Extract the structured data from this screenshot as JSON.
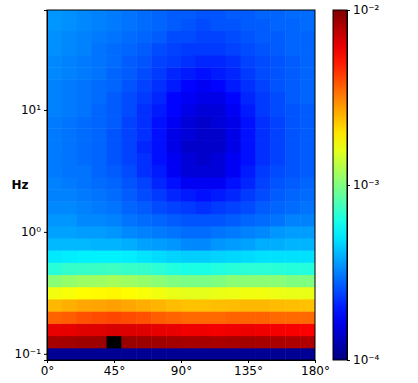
{
  "chart_data": {
    "type": "heatmap",
    "y_label": "Hz",
    "log": "y",
    "xlim": [
      0,
      180
    ],
    "xticks": [
      {
        "value": 0,
        "label": "0°"
      },
      {
        "value": 45,
        "label": "45°"
      },
      {
        "value": 90,
        "label": "90°"
      },
      {
        "value": 135,
        "label": "135°"
      },
      {
        "value": 180,
        "label": "180°"
      }
    ],
    "ylim": [
      0.089,
      66
    ],
    "yticks": [
      {
        "value": 0.1,
        "label": "10⁻¹"
      },
      {
        "value": 1,
        "label": "10⁰"
      },
      {
        "value": 10,
        "label": "10¹"
      }
    ],
    "x_bins": [
      0,
      10,
      20,
      30,
      40,
      50,
      60,
      70,
      80,
      90,
      100,
      110,
      120,
      130,
      140,
      150,
      160,
      170,
      180
    ],
    "y_bins": [
      0.0891,
      0.112,
      0.141,
      0.178,
      0.224,
      0.282,
      0.355,
      0.447,
      0.562,
      0.708,
      0.891,
      1.12,
      1.41,
      1.78,
      2.24,
      2.82,
      3.55,
      4.47,
      5.62,
      7.08,
      8.91,
      11.2,
      14.1,
      17.8,
      22.4,
      28.2,
      35.5,
      44.7,
      56.2,
      70.8
    ],
    "values": [
      [
        0.00011,
        0.00011,
        0.00011,
        0.00011,
        0.00011,
        0.00011,
        0.00011,
        0.00011,
        0.00011,
        0.00011,
        0.00011,
        0.00011,
        0.00011,
        0.00011,
        0.00011,
        0.00011,
        0.00011,
        0.00011
      ],
      [
        0.0084,
        0.0085,
        0.0087,
        0.0088,
        0.014,
        0.0089,
        0.0088,
        0.0087,
        0.0085,
        0.0084,
        0.0084,
        0.0082,
        0.0084,
        0.0085,
        0.0084,
        0.0082,
        0.0081,
        0.0081
      ],
      [
        0.0062,
        0.0063,
        0.0065,
        0.0065,
        0.0067,
        0.0066,
        0.0065,
        0.0063,
        0.0062,
        0.006,
        0.006,
        0.0059,
        0.006,
        0.0061,
        0.006,
        0.0059,
        0.0058,
        0.0057
      ],
      [
        0.0036,
        0.0037,
        0.0039,
        0.004,
        0.0041,
        0.004,
        0.0039,
        0.0037,
        0.0036,
        0.0035,
        0.0035,
        0.0035,
        0.0036,
        0.0036,
        0.0036,
        0.0035,
        0.0035,
        0.0035
      ],
      [
        0.00245,
        0.00255,
        0.00265,
        0.00268,
        0.00274,
        0.00265,
        0.00257,
        0.00249,
        0.00241,
        0.00235,
        0.00235,
        0.00237,
        0.00241,
        0.00245,
        0.00245,
        0.00241,
        0.00237,
        0.00235
      ],
      [
        0.00167,
        0.00173,
        0.00179,
        0.00182,
        0.00184,
        0.00179,
        0.00173,
        0.00167,
        0.00161,
        0.00158,
        0.00158,
        0.00161,
        0.00164,
        0.00167,
        0.00167,
        0.00164,
        0.00161,
        0.00161
      ],
      [
        0.00105,
        0.0011,
        0.00114,
        0.00114,
        0.00118,
        0.00114,
        0.0011,
        0.00105,
        0.001,
        0.00097,
        0.00097,
        0.001,
        0.00105,
        0.00105,
        0.00105,
        0.00105,
        0.001,
        0.001
      ],
      [
        0.00067,
        0.00071,
        0.00072,
        0.00073,
        0.00074,
        0.00072,
        0.00071,
        0.00068,
        0.00065,
        0.00063,
        0.00063,
        0.00065,
        0.00067,
        0.00068,
        0.00068,
        0.00067,
        0.00066,
        0.00066
      ],
      [
        0.00051,
        0.00052,
        0.00053,
        0.00053,
        0.00053,
        0.00052,
        0.0005,
        0.00048,
        0.00046,
        0.00045,
        0.00045,
        0.00046,
        0.00047,
        0.00048,
        0.00049,
        0.00049,
        0.00049,
        0.00049
      ],
      [
        0.00041,
        0.00041,
        0.00041,
        0.0004,
        0.0004,
        0.00039,
        0.00037,
        0.00036,
        0.00035,
        0.00033,
        0.00033,
        0.00035,
        0.00036,
        0.00037,
        0.00039,
        0.00039,
        0.0004,
        0.0004
      ],
      [
        0.00037,
        0.00037,
        0.00036,
        0.00036,
        0.00035,
        0.00033,
        0.00032,
        0.00031,
        0.0003,
        0.00029,
        0.00029,
        0.0003,
        0.00031,
        0.00032,
        0.00033,
        0.00035,
        0.00036,
        0.00036
      ],
      [
        0.00035,
        0.00035,
        0.00033,
        0.00033,
        0.00032,
        0.0003,
        0.00029,
        0.00028,
        0.00027,
        0.00026,
        0.00026,
        0.00026,
        0.00027,
        0.00028,
        0.00029,
        0.0003,
        0.00032,
        0.00032
      ],
      [
        0.00033,
        0.00033,
        0.00032,
        0.00031,
        0.0003,
        0.00028,
        0.00027,
        0.00025,
        0.00024,
        0.00023,
        0.00022,
        0.00023,
        0.00024,
        0.00025,
        0.00027,
        0.00028,
        0.00029,
        0.0003
      ],
      [
        0.00032,
        0.00032,
        0.00031,
        0.0003,
        0.00029,
        0.00027,
        0.00025,
        0.00023,
        0.00021,
        0.0002,
        0.00019,
        0.0002,
        0.00021,
        0.00023,
        0.00025,
        0.00027,
        0.00028,
        0.00029
      ],
      [
        0.00032,
        0.00031,
        0.0003,
        0.00029,
        0.00028,
        0.00026,
        0.00024,
        0.00021,
        0.00019,
        0.00017,
        0.00017,
        0.00017,
        0.00019,
        0.00021,
        0.00024,
        0.00026,
        0.00027,
        0.00028
      ],
      [
        0.00031,
        0.0003,
        0.0003,
        0.00028,
        0.00027,
        0.00025,
        0.00022,
        0.0002,
        0.00017,
        0.00015,
        0.00015,
        0.00015,
        0.00017,
        0.0002,
        0.00023,
        0.00025,
        0.00026,
        0.00027
      ],
      [
        0.00031,
        0.0003,
        0.00029,
        0.00028,
        0.00026,
        0.00024,
        0.00022,
        0.00019,
        0.00017,
        0.00015,
        0.00014,
        0.00015,
        0.00017,
        0.00019,
        0.00022,
        0.00024,
        0.00026,
        0.00027
      ],
      [
        0.00031,
        0.0003,
        0.00029,
        0.00028,
        0.00026,
        0.00024,
        0.00021,
        0.00019,
        0.00016,
        0.00014,
        0.00014,
        0.00014,
        0.00016,
        0.00019,
        0.00022,
        0.00024,
        0.00026,
        0.00027
      ],
      [
        0.00031,
        0.0003,
        0.00029,
        0.00028,
        0.00026,
        0.00024,
        0.00022,
        0.00019,
        0.00016,
        0.00015,
        0.00014,
        0.00014,
        0.00016,
        0.00019,
        0.00022,
        0.00024,
        0.00026,
        0.00027
      ],
      [
        0.00031,
        0.0003,
        0.00029,
        0.00028,
        0.00027,
        0.00024,
        0.00022,
        0.00019,
        0.00017,
        0.00015,
        0.00014,
        0.00015,
        0.00016,
        0.00019,
        0.00022,
        0.00024,
        0.00026,
        0.00027
      ],
      [
        0.00032,
        0.00031,
        0.0003,
        0.00028,
        0.00027,
        0.00025,
        0.00022,
        0.0002,
        0.00018,
        0.00016,
        0.00015,
        0.00015,
        0.00017,
        0.0002,
        0.00023,
        0.00025,
        0.00026,
        0.00027
      ],
      [
        0.00032,
        0.00031,
        0.0003,
        0.00029,
        0.00027,
        0.00025,
        0.00023,
        0.00021,
        0.00018,
        0.00017,
        0.00016,
        0.00016,
        0.00018,
        0.00021,
        0.00023,
        0.00025,
        0.00027,
        0.00028
      ],
      [
        0.00032,
        0.00031,
        0.0003,
        0.00029,
        0.00028,
        0.00026,
        0.00024,
        0.00022,
        0.0002,
        0.00018,
        0.00017,
        0.00018,
        0.0002,
        0.00022,
        0.00024,
        0.00026,
        0.00027,
        0.00028
      ],
      [
        0.00033,
        0.00032,
        0.00031,
        0.0003,
        0.00028,
        0.00027,
        0.00025,
        0.00023,
        0.00021,
        0.0002,
        0.00019,
        0.0002,
        0.00021,
        0.00023,
        0.00025,
        0.00026,
        0.00027,
        0.00028
      ],
      [
        0.00033,
        0.00032,
        0.00031,
        0.0003,
        0.00029,
        0.00027,
        0.00026,
        0.00024,
        0.00023,
        0.00022,
        0.00021,
        0.00021,
        0.00022,
        0.00024,
        0.00025,
        0.00026,
        0.00027,
        0.00028
      ],
      [
        0.00034,
        0.00033,
        0.00032,
        0.0003,
        0.00029,
        0.00028,
        0.00027,
        0.00025,
        0.00024,
        0.00023,
        0.00023,
        0.00023,
        0.00024,
        0.00025,
        0.00026,
        0.00027,
        0.00028,
        0.00028
      ],
      [
        0.00034,
        0.00033,
        0.00032,
        0.00031,
        0.0003,
        0.00029,
        0.00028,
        0.00027,
        0.00025,
        0.00025,
        0.00024,
        0.00024,
        0.00025,
        0.00026,
        0.00027,
        0.00027,
        0.00028,
        0.00028
      ],
      [
        0.00035,
        0.00034,
        0.00033,
        0.00032,
        0.00031,
        0.0003,
        0.00029,
        0.00028,
        0.00027,
        0.00026,
        0.00025,
        0.00026,
        0.00026,
        0.00027,
        0.00027,
        0.00028,
        0.00028,
        0.00029
      ],
      [
        0.00035,
        0.00034,
        0.00033,
        0.00032,
        0.00031,
        0.0003,
        0.00029,
        0.00028,
        0.00027,
        0.00027,
        0.00026,
        0.00026,
        0.00027,
        0.00027,
        0.00028,
        0.00028,
        0.00029,
        0.00029
      ]
    ],
    "colorbar": {
      "range": [
        0.0001,
        0.01
      ],
      "ticks": [
        {
          "value": 0.0001,
          "label": "10⁻⁴"
        },
        {
          "value": 0.001,
          "label": "10⁻³"
        },
        {
          "value": 0.01,
          "label": "10⁻²"
        }
      ]
    }
  }
}
